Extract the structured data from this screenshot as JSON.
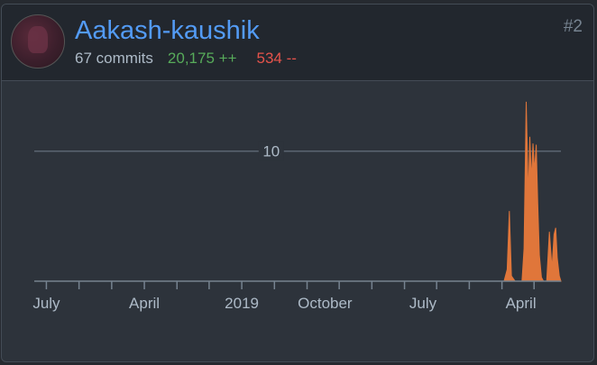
{
  "contributor": {
    "username": "Aakash-kaushik",
    "commits": "67 commits",
    "additions": "20,175 ++",
    "deletions": "534 --",
    "rank": "#2"
  },
  "colors": {
    "accent": "#539bf5",
    "additions": "#57ab5a",
    "deletions": "#e5534b",
    "area": "#e0763a"
  },
  "chart_data": {
    "type": "area",
    "ytick_labels": [
      "10"
    ],
    "ytick_values": [
      10
    ],
    "ylim": [
      0,
      14
    ],
    "xlim": [
      0,
      100
    ],
    "xtick_labels": [
      {
        "label": "July",
        "pos": 2.3
      },
      {
        "label": "April",
        "pos": 20.9
      },
      {
        "label": "2019",
        "pos": 39.4
      },
      {
        "label": "October",
        "pos": 55.2
      },
      {
        "label": "July",
        "pos": 73.8
      },
      {
        "label": "April",
        "pos": 92.4
      }
    ],
    "minor_ticks": [
      2.3,
      8.5,
      14.7,
      20.9,
      27.1,
      33.2,
      39.4,
      45.6,
      51.8,
      57.9,
      64.1,
      70.3,
      76.4,
      82.6,
      88.8,
      94.9
    ],
    "x": [
      89.2,
      89.8,
      90.2,
      90.6,
      91.3,
      92.6,
      93.0,
      93.4,
      93.8,
      94.1,
      94.4,
      94.7,
      95.0,
      95.3,
      95.6,
      95.9,
      96.3,
      96.7,
      97.3,
      97.8,
      98.3,
      98.7,
      99.0,
      99.3,
      99.7,
      100.0
    ],
    "y": [
      0,
      0.9,
      5.4,
      0.4,
      0,
      0,
      2.5,
      13.8,
      6.5,
      11.1,
      7.8,
      10.6,
      8.5,
      10.5,
      6.0,
      2.0,
      0.3,
      0,
      0,
      3.8,
      1.0,
      3.6,
      4.1,
      1.8,
      0.4,
      0
    ]
  }
}
